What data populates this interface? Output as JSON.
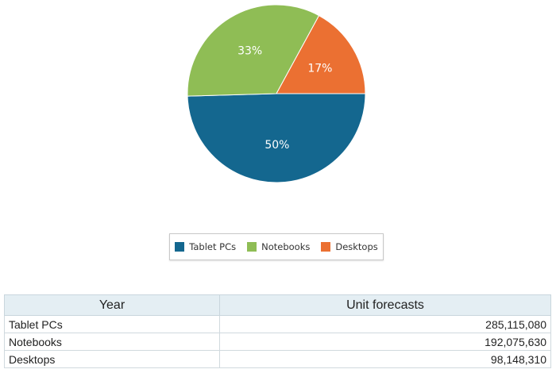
{
  "chart_data": {
    "type": "pie",
    "categories": [
      "Tablet PCs",
      "Notebooks",
      "Desktops"
    ],
    "values": [
      285115080,
      192075630,
      98148310
    ],
    "percent_labels": [
      "50%",
      "33%",
      "17%"
    ],
    "colors": [
      "#14678f",
      "#8fbd55",
      "#eb7032"
    ],
    "legend_placement": "bottom"
  },
  "table": {
    "headers": [
      "Year",
      "Unit forecasts"
    ],
    "rows": [
      {
        "label": "Tablet PCs",
        "value": "285,115,080"
      },
      {
        "label": "Notebooks",
        "value": "192,075,630"
      },
      {
        "label": "Desktops",
        "value": "98,148,310"
      }
    ]
  }
}
